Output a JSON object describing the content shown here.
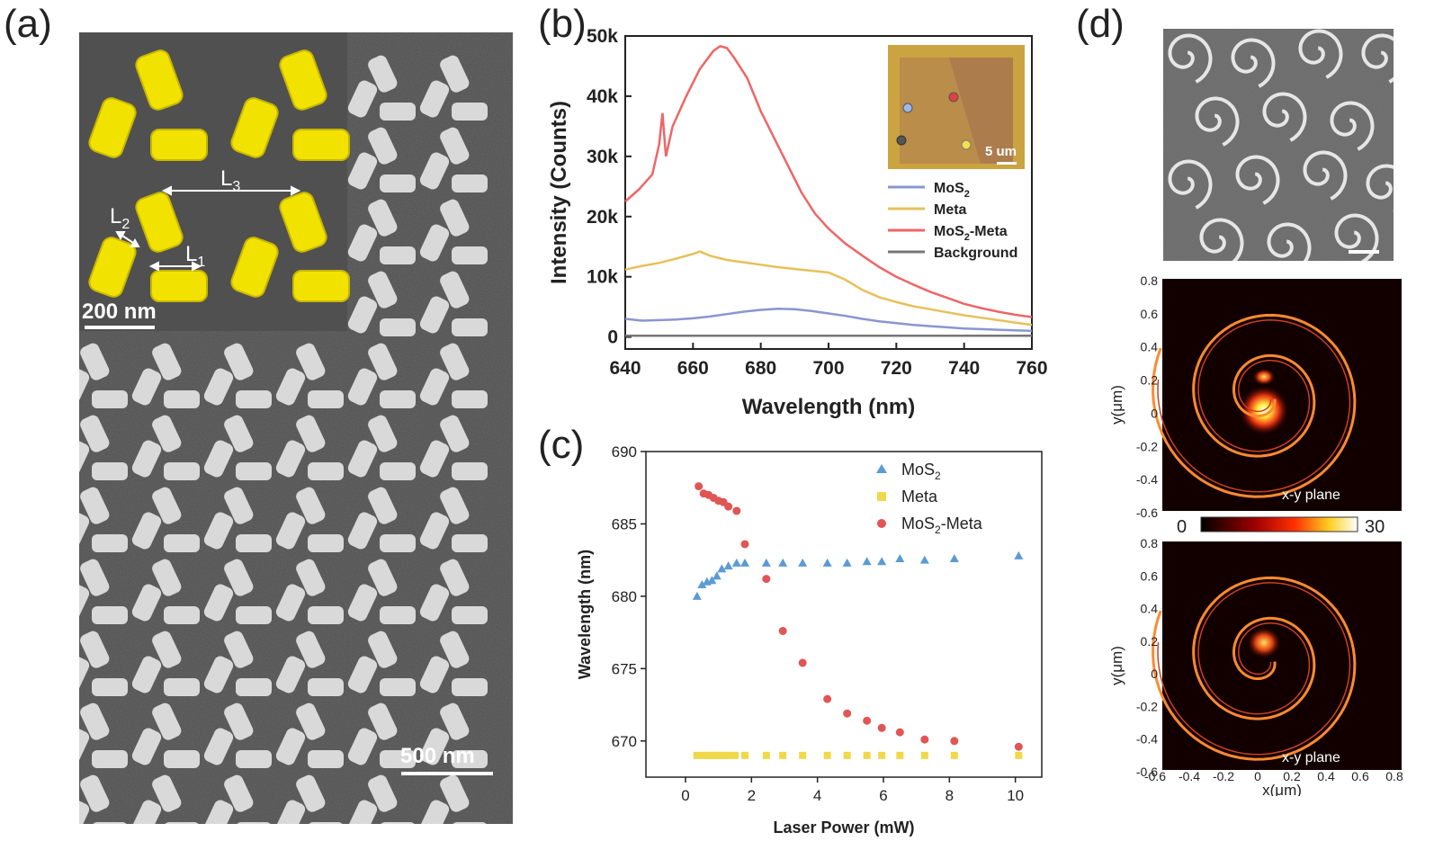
{
  "panels": {
    "a": {
      "label": "(a)",
      "inset_scalebar": "200 nm",
      "main_scalebar": "500 nm",
      "dims": {
        "l1": "L",
        "l1_sub": "1",
        "l2": "L",
        "l2_sub": "2",
        "l3": "L",
        "l3_sub": "3"
      }
    },
    "b": {
      "label": "(b)",
      "inset_scalebar": "5 um",
      "legend": [
        {
          "name": "MoS",
          "sub": "2",
          "suffix": "",
          "color": "#8b95d0"
        },
        {
          "name": "Meta",
          "sub": "",
          "suffix": "",
          "color": "#e8c05a"
        },
        {
          "name": "MoS",
          "sub": "2",
          "suffix": "-Meta",
          "color": "#ee6666"
        },
        {
          "name": "Background",
          "sub": "",
          "suffix": "",
          "color": "#777777"
        }
      ]
    },
    "c": {
      "label": "(c)",
      "legend": [
        {
          "name": "MoS",
          "sub": "2",
          "suffix": "",
          "color": "#5b9bd5"
        },
        {
          "name": "Meta",
          "sub": "",
          "suffix": "",
          "color": "#f0d84a"
        },
        {
          "name": "MoS",
          "sub": "2",
          "suffix": "-Meta",
          "color": "#e05555"
        }
      ]
    },
    "d": {
      "label": "(d)",
      "plane_label_1": "x-y plane",
      "plane_label_2": "x-y plane",
      "colorbar_min": "0",
      "colorbar_max": "30",
      "ylabel": "y(μm)",
      "xlabel": "x(μm)",
      "y_ticks": [
        "0.8",
        "0.6",
        "0.4",
        "0.2",
        "0",
        "-0.2",
        "-0.4",
        "-0.6"
      ],
      "x_ticks": [
        "-0.6",
        "-0.4",
        "-0.2",
        "0",
        "0.2",
        "0.4",
        "0.6",
        "0.8"
      ]
    }
  },
  "chart_data": [
    {
      "id": "b",
      "type": "line",
      "title": "",
      "xlabel": "Wavelength (nm)",
      "ylabel": "Intensity (Counts)",
      "xlim": [
        640,
        760
      ],
      "ylim": [
        -2000,
        50000
      ],
      "x_ticks": [
        640,
        660,
        680,
        700,
        720,
        740,
        760
      ],
      "x_tick_labels": [
        "640",
        "660",
        "680",
        "700",
        "720",
        "740",
        "760"
      ],
      "y_ticks": [
        0,
        10000,
        20000,
        30000,
        40000,
        50000
      ],
      "y_tick_labels": [
        "0",
        "10k",
        "20k",
        "30k",
        "40k",
        "50k"
      ],
      "series": [
        {
          "name": "MoS2",
          "color": "#8b95d0",
          "x": [
            640,
            645,
            650,
            655,
            660,
            665,
            670,
            675,
            680,
            685,
            690,
            695,
            700,
            705,
            710,
            715,
            720,
            725,
            730,
            735,
            740,
            745,
            750,
            755,
            760
          ],
          "y": [
            3000,
            2700,
            2800,
            2900,
            3100,
            3400,
            3800,
            4200,
            4500,
            4700,
            4600,
            4300,
            3900,
            3500,
            3000,
            2600,
            2300,
            2000,
            1800,
            1600,
            1400,
            1300,
            1200,
            1100,
            1000
          ]
        },
        {
          "name": "Meta",
          "color": "#e8c05a",
          "x": [
            640,
            645,
            650,
            655,
            660,
            662,
            665,
            670,
            675,
            680,
            685,
            690,
            695,
            700,
            705,
            710,
            715,
            720,
            725,
            730,
            735,
            740,
            745,
            750,
            755,
            760
          ],
          "y": [
            11200,
            11800,
            12300,
            13000,
            13800,
            14200,
            13500,
            12800,
            12400,
            12000,
            11600,
            11300,
            11000,
            10700,
            9500,
            7800,
            6600,
            5800,
            5100,
            4600,
            4100,
            3600,
            3200,
            2800,
            2400,
            2000
          ]
        },
        {
          "name": "MoS2-Meta",
          "color": "#ee6666",
          "x": [
            640,
            644,
            648,
            650,
            651,
            652,
            654,
            658,
            662,
            666,
            668,
            670,
            672,
            676,
            680,
            684,
            688,
            692,
            696,
            700,
            705,
            710,
            715,
            720,
            725,
            730,
            735,
            740,
            745,
            750,
            755,
            760
          ],
          "y": [
            22500,
            24500,
            27000,
            32000,
            37200,
            30000,
            35000,
            40000,
            44500,
            47500,
            48300,
            48000,
            46500,
            43000,
            37500,
            33000,
            28500,
            24000,
            20500,
            18000,
            15500,
            13500,
            11600,
            10000,
            8700,
            7500,
            6500,
            5500,
            4800,
            4200,
            3700,
            3300
          ]
        },
        {
          "name": "Background",
          "color": "#777777",
          "x": [
            640,
            760
          ],
          "y": [
            200,
            200
          ]
        }
      ]
    },
    {
      "id": "c",
      "type": "scatter",
      "title": "",
      "xlabel": "Laser Power (mW)",
      "ylabel": "Wavelength (nm)",
      "xlim": [
        -1.2,
        10.8
      ],
      "ylim": [
        667.5,
        690
      ],
      "x_ticks": [
        0,
        2,
        4,
        6,
        8,
        10
      ],
      "x_tick_labels": [
        "0",
        "2",
        "4",
        "6",
        "8",
        "10"
      ],
      "y_ticks": [
        670,
        675,
        680,
        685,
        690
      ],
      "y_tick_labels": [
        "670",
        "675",
        "680",
        "685",
        "690"
      ],
      "series": [
        {
          "name": "MoS2",
          "marker": "triangle",
          "color": "#5b9bd5",
          "x": [
            0.35,
            0.5,
            0.65,
            0.8,
            0.95,
            1.1,
            1.3,
            1.55,
            1.8,
            2.45,
            2.95,
            3.55,
            4.3,
            4.9,
            5.5,
            5.95,
            6.5,
            7.25,
            8.15,
            10.1
          ],
          "y": [
            680.0,
            680.8,
            681.0,
            681.1,
            681.4,
            681.9,
            682.1,
            682.3,
            682.3,
            682.3,
            682.3,
            682.3,
            682.3,
            682.3,
            682.4,
            682.4,
            682.6,
            682.5,
            682.6,
            682.8
          ]
        },
        {
          "name": "Meta",
          "marker": "square",
          "color": "#f0d84a",
          "x": [
            0.35,
            0.5,
            0.6,
            0.7,
            0.8,
            0.9,
            1.0,
            1.1,
            1.2,
            1.3,
            1.5,
            1.8,
            2.45,
            2.95,
            3.55,
            4.3,
            4.9,
            5.5,
            5.95,
            6.5,
            7.25,
            8.15,
            10.1
          ],
          "y": [
            669.0,
            669.0,
            669.0,
            669.0,
            669.0,
            669.0,
            669.0,
            669.0,
            669.0,
            669.0,
            669.0,
            669.0,
            669.0,
            669.0,
            669.0,
            669.0,
            669.0,
            669.0,
            669.0,
            669.0,
            669.0,
            669.0,
            669.0
          ]
        },
        {
          "name": "MoS2-Meta",
          "marker": "circle",
          "color": "#e05555",
          "x": [
            0.4,
            0.55,
            0.7,
            0.85,
            1.0,
            1.15,
            1.3,
            1.55,
            1.8,
            2.45,
            2.95,
            3.55,
            4.3,
            4.9,
            5.5,
            5.95,
            6.5,
            7.25,
            8.15,
            10.1
          ],
          "y": [
            687.6,
            687.1,
            687.0,
            686.8,
            686.6,
            686.5,
            686.2,
            685.9,
            683.6,
            681.2,
            677.6,
            675.4,
            672.9,
            671.9,
            671.4,
            670.9,
            670.6,
            670.1,
            670.0,
            669.6
          ]
        }
      ]
    }
  ]
}
